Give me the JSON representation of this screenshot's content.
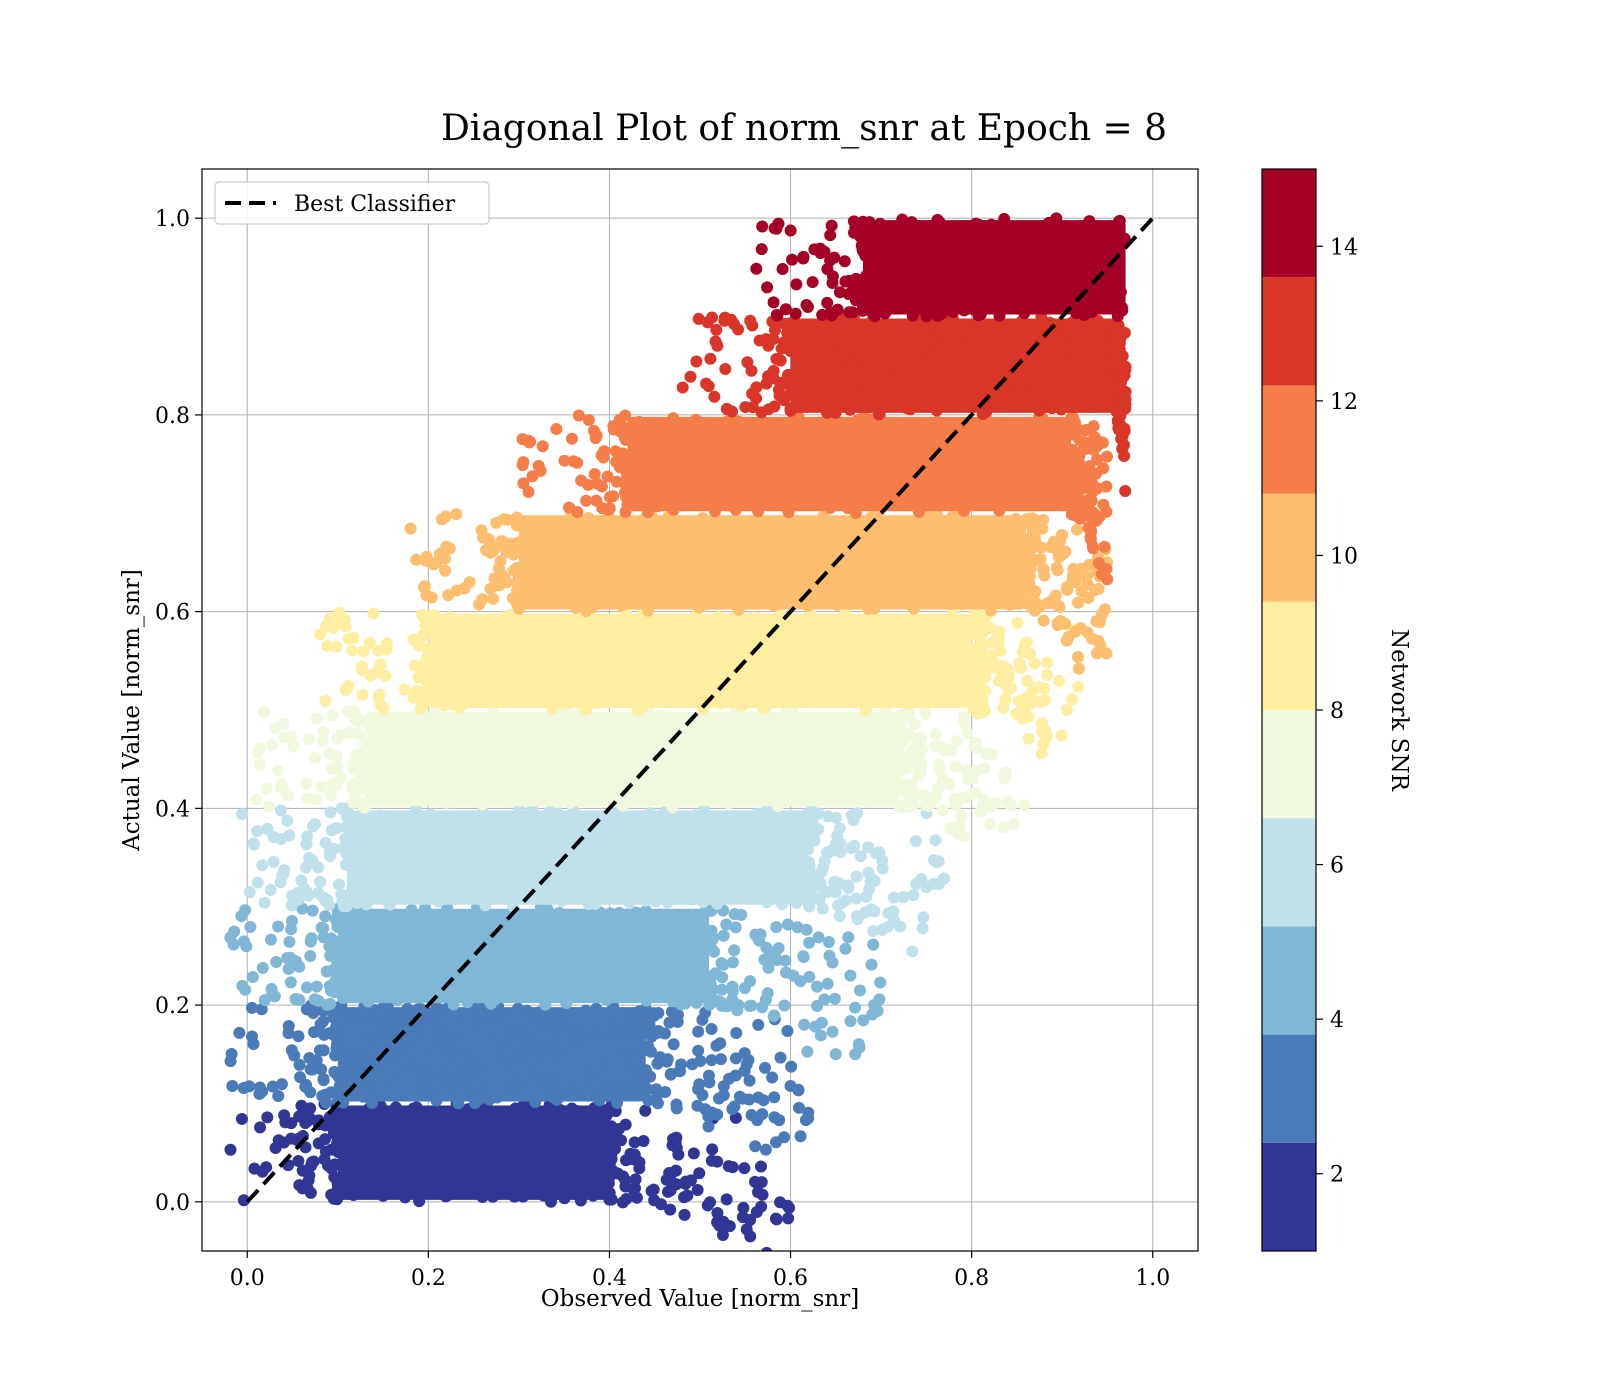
{
  "chart_data": {
    "type": "scatter",
    "title": "Diagonal Plot of norm_snr at Epoch = 8",
    "xlabel": "Observed Value [norm_snr]",
    "ylabel": "Actual Value [norm_snr]",
    "xlim": [
      -0.05,
      1.05
    ],
    "ylim": [
      -0.05,
      1.05
    ],
    "xticks": [
      "0.0",
      "0.2",
      "0.4",
      "0.6",
      "0.8",
      "1.0"
    ],
    "yticks": [
      "0.0",
      "0.2",
      "0.4",
      "0.6",
      "0.8",
      "1.0"
    ],
    "grid": true,
    "legend": {
      "position": "upper-left",
      "entries": [
        "Best Classifier"
      ]
    },
    "reference_line": {
      "name": "Best Classifier",
      "style": "dashed",
      "color": "#000000",
      "x": [
        0.0,
        1.0
      ],
      "y": [
        0.0,
        1.0
      ]
    },
    "colorbar": {
      "label": "Network SNR",
      "range": [
        1,
        15
      ],
      "ticks": [
        "2",
        "4",
        "6",
        "8",
        "10",
        "12",
        "14"
      ],
      "colors": [
        "#313695",
        "#4a7ab7",
        "#80b6d6",
        "#c0e1ec",
        "#f0f8de",
        "#feeea1",
        "#fdbe6f",
        "#f57d4a",
        "#d93529",
        "#a50026"
      ]
    },
    "bands": [
      {
        "snr": 1.7,
        "y": [
          0.0,
          0.1
        ],
        "core_x": [
          0.1,
          0.4
        ],
        "tail_x": 0.6,
        "color": "#313695"
      },
      {
        "snr": 3.1,
        "y": [
          0.1,
          0.2
        ],
        "core_x": [
          0.1,
          0.44
        ],
        "tail_x": 0.62,
        "color": "#4a7ab7"
      },
      {
        "snr": 4.5,
        "y": [
          0.2,
          0.3
        ],
        "core_x": [
          0.1,
          0.51
        ],
        "tail_x": 0.7,
        "color": "#80b6d6"
      },
      {
        "snr": 5.9,
        "y": [
          0.3,
          0.4
        ],
        "core_x": [
          0.11,
          0.62
        ],
        "tail_x": 0.77,
        "color": "#c0e1ec"
      },
      {
        "snr": 7.3,
        "y": [
          0.4,
          0.5
        ],
        "core_x": [
          0.13,
          0.72
        ],
        "tail_x": 0.86,
        "color": "#f0f8de"
      },
      {
        "snr": 8.7,
        "y": [
          0.5,
          0.6
        ],
        "core_x": [
          0.2,
          0.8
        ],
        "tail_x": 0.92,
        "color": "#feeea1"
      },
      {
        "snr": 10.1,
        "y": [
          0.6,
          0.7
        ],
        "core_x": [
          0.3,
          0.86
        ],
        "tail_x": 0.95,
        "color": "#fdbe6f"
      },
      {
        "snr": 11.5,
        "y": [
          0.7,
          0.8
        ],
        "core_x": [
          0.42,
          0.91
        ],
        "tail_x": 0.95,
        "color": "#f57d4a"
      },
      {
        "snr": 12.9,
        "y": [
          0.8,
          0.9
        ],
        "core_x": [
          0.6,
          0.96
        ],
        "tail_x": 0.97,
        "color": "#d93529"
      },
      {
        "snr": 14.3,
        "y": [
          0.9,
          1.0
        ],
        "core_x": [
          0.68,
          0.97
        ],
        "tail_x": 0.97,
        "color": "#a50026"
      }
    ]
  }
}
